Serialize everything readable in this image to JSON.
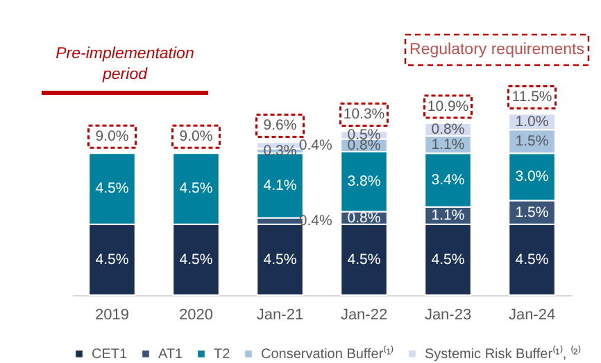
{
  "chart_data": {
    "type": "bar",
    "stacked": true,
    "legend": "bottom",
    "grid": false,
    "tick_labels": "x",
    "categories": [
      "2019",
      "2020",
      "Jan-21",
      "Jan-22",
      "Jan-23",
      "Jan-24"
    ],
    "series": [
      {
        "name": "CET1",
        "color": "#1b2f52",
        "values": [
          4.5,
          4.5,
          4.5,
          4.5,
          4.5,
          4.5
        ],
        "value_labels": [
          "4.5%",
          "4.5%",
          "4.5%",
          "4.5%",
          "4.5%",
          "4.5%"
        ]
      },
      {
        "name": "AT1",
        "color": "#3b5578",
        "values": [
          null,
          null,
          0.4,
          0.8,
          1.1,
          1.5
        ],
        "value_labels": [
          null,
          null,
          "0.4%",
          "0.8%",
          "1.1%",
          "1.5%"
        ]
      },
      {
        "name": "T2",
        "color": "#00829e",
        "values": [
          4.5,
          4.5,
          4.1,
          3.8,
          3.4,
          3.0
        ],
        "value_labels": [
          "4.5%",
          "4.5%",
          "4.1%",
          "3.8%",
          "3.4%",
          "3.0%"
        ]
      },
      {
        "name": "Conservation Buffer⁽¹⁾",
        "color": "#a6c4dd",
        "values": [
          null,
          null,
          0.3,
          0.8,
          1.1,
          1.5
        ],
        "value_labels": [
          null,
          null,
          "0.3%",
          "0.8%",
          "1.1%",
          "1.5%"
        ]
      },
      {
        "name": "Systemic Risk Buffer⁽¹⁾, ⁽²⁾",
        "color": "#d3dcf2",
        "values": [
          null,
          null,
          0.4,
          0.5,
          0.8,
          1.0
        ],
        "value_labels": [
          null,
          null,
          "0.4%",
          "0.5%",
          "0.8%",
          "1.0%"
        ]
      }
    ],
    "totals": [
      "9.0%",
      "9.0%",
      "9.6%",
      "10.3%",
      "10.9%",
      "11.5%"
    ],
    "annotations": [
      "Pre-implementation period",
      "Regulatory requirements"
    ]
  }
}
